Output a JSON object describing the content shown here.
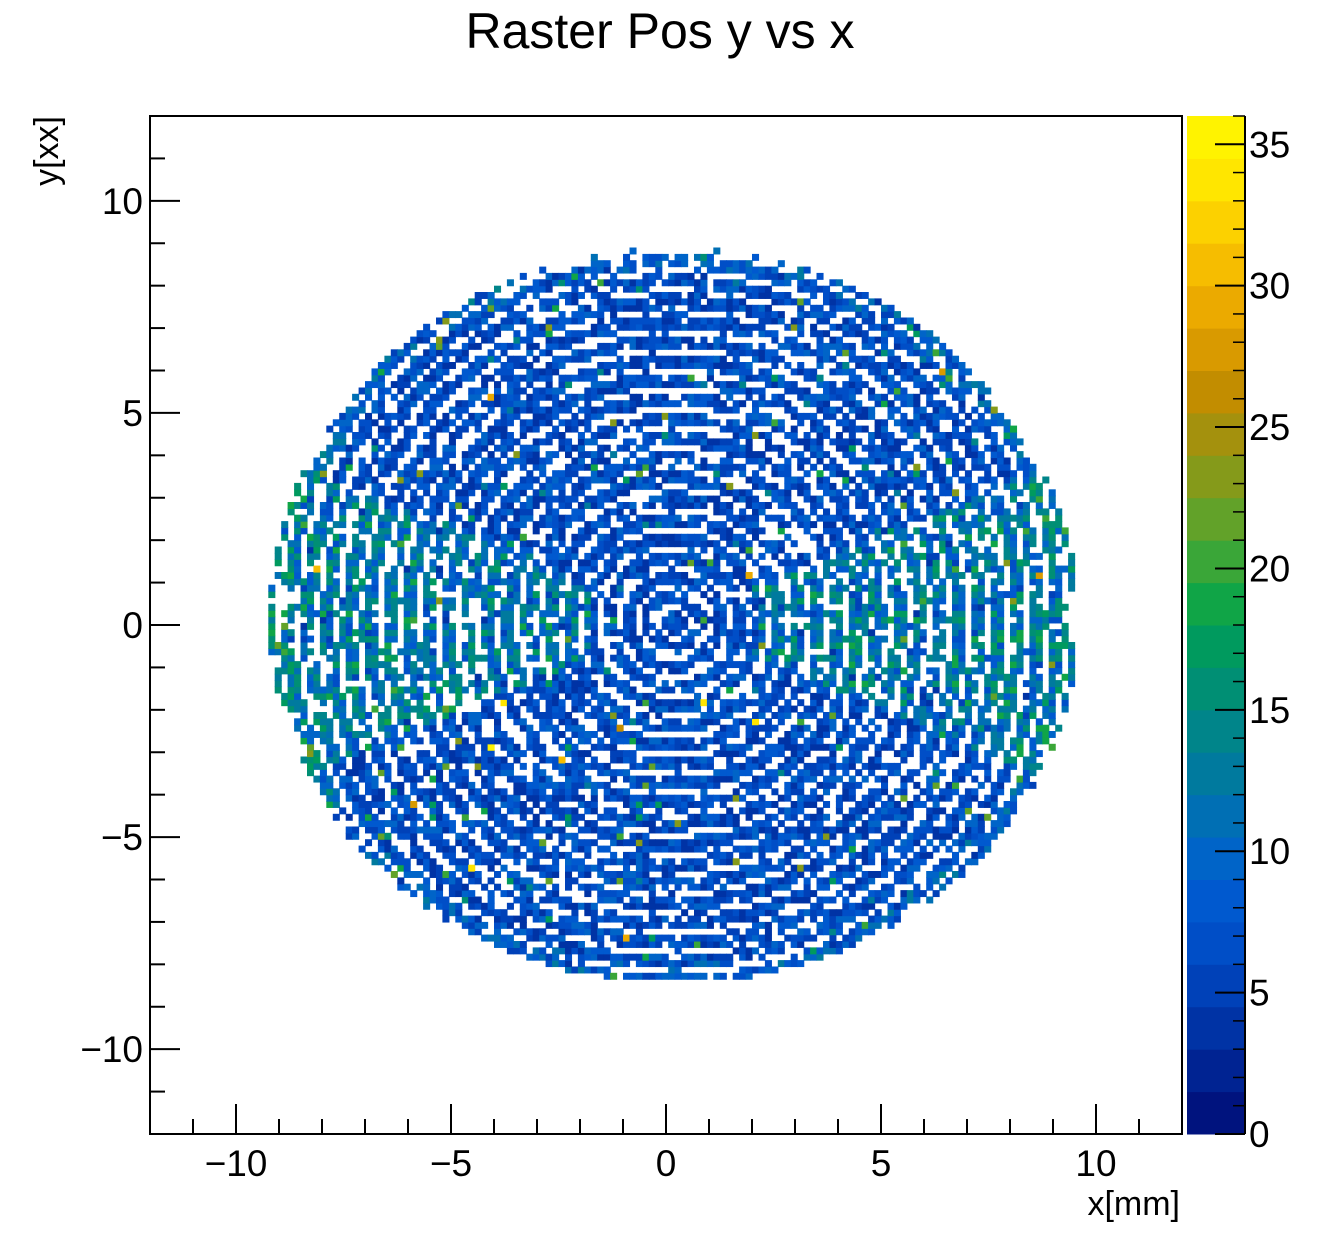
{
  "chart_data": {
    "type": "heatmap",
    "title": "Raster Pos y vs x",
    "xlabel": "x[mm]",
    "ylabel": "y[xx]",
    "xlim": [
      -12,
      12
    ],
    "ylim": [
      -12,
      12
    ],
    "x_ticks": [
      -10,
      -5,
      0,
      5,
      10
    ],
    "y_ticks": [
      -10,
      -5,
      0,
      5,
      10
    ],
    "x_tick_labels": [
      "−10",
      "−5",
      "0",
      "5",
      "10"
    ],
    "y_tick_labels": [
      "−10",
      "−5",
      "0",
      "5",
      "10"
    ],
    "z_range": [
      0,
      36
    ],
    "z_ticks": [
      0,
      5,
      10,
      15,
      20,
      25,
      30,
      35
    ],
    "z_tick_labels": [
      "0",
      "5",
      "10",
      "15",
      "20",
      "25",
      "30",
      "35"
    ],
    "z_palette": [
      "#00137e",
      "#002392",
      "#0033a5",
      "#0041b8",
      "#004ec7",
      "#0059cf",
      "#0064c8",
      "#006fb4",
      "#007a9e",
      "#00858a",
      "#008f74",
      "#009a5e",
      "#10a547",
      "#3aa638",
      "#62a229",
      "#859a1a",
      "#a4910d",
      "#c28d00",
      "#d99a00",
      "#ebaa00",
      "#f6bd00",
      "#fcd100",
      "#ffe600",
      "#fff300"
    ],
    "distribution": {
      "shape": "disk",
      "center": [
        0.1,
        0.0
      ],
      "x_extent": [
        -9.4,
        9.4
      ],
      "y_extent": [
        -8.5,
        8.8
      ],
      "pattern": "concentric rings",
      "typical_counts": [
        3,
        10
      ],
      "max_count": 36
    }
  }
}
